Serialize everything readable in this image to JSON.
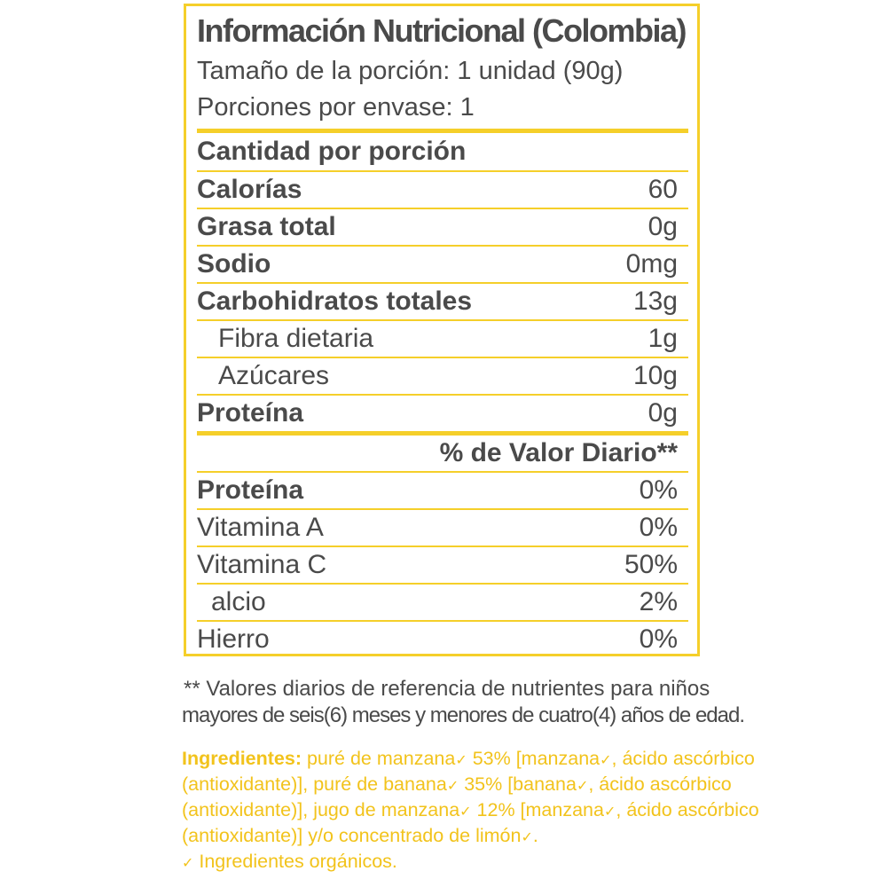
{
  "colors": {
    "accent": "#f5cf2a",
    "text": "#4a4a4a",
    "ingredients": "#f2c31c"
  },
  "panel": {
    "title": "Información Nutricional (Colombia)",
    "serving_size": "Tamaño de la porción: 1 unidad (90g)",
    "servings_per_container": "Porciones por envase: 1",
    "amount_header": "Cantidad por porción",
    "nutrients": [
      {
        "label": "Calorías",
        "value": "60"
      },
      {
        "label": "Grasa total",
        "value": "0g"
      },
      {
        "label": "Sodio",
        "value": "0mg"
      },
      {
        "label": "Carbohidratos totales",
        "value": "13g"
      },
      {
        "label": "Fibra dietaria",
        "value": "1g"
      },
      {
        "label": "Azúcares",
        "value": "10g"
      },
      {
        "label": "Proteína",
        "value": "0g"
      }
    ],
    "daily_value_header": "% de Valor Diario**",
    "daily_values": [
      {
        "label": "Proteína",
        "value": "0%"
      },
      {
        "label": "Vitamina A",
        "value": "0%"
      },
      {
        "label": "Vitamina C",
        "value": "50%"
      },
      {
        "label": "alcio",
        "value": "2%"
      },
      {
        "label": "Hierro",
        "value": "0%"
      }
    ]
  },
  "footnote": {
    "line1": "** Valores diarios de referencia de nutrientes para niños",
    "line2": "mayores de seis(6) meses y menores de cuatro(4) años de edad."
  },
  "ingredients": {
    "label": "Ingredientes:",
    "check": "✓",
    "line1_a": " puré de manzana",
    "line1_b": " 53% [manzana",
    "line1_c": ", ácido ascórbico",
    "line2_a": "(antioxidante)], puré de banana",
    "line2_b": "   35% [banana",
    "line2_c": ", ácido ascórbico",
    "line3_a": "(antioxidante)], jugo de manzana",
    "line3_b": " 12% [manzana",
    "line3_c": ", ácido ascórbico",
    "line4_a": "(antioxidante)] y/o concentrado de limón",
    "line4_b": ".",
    "organic_note": " Ingredientes orgánicos."
  }
}
